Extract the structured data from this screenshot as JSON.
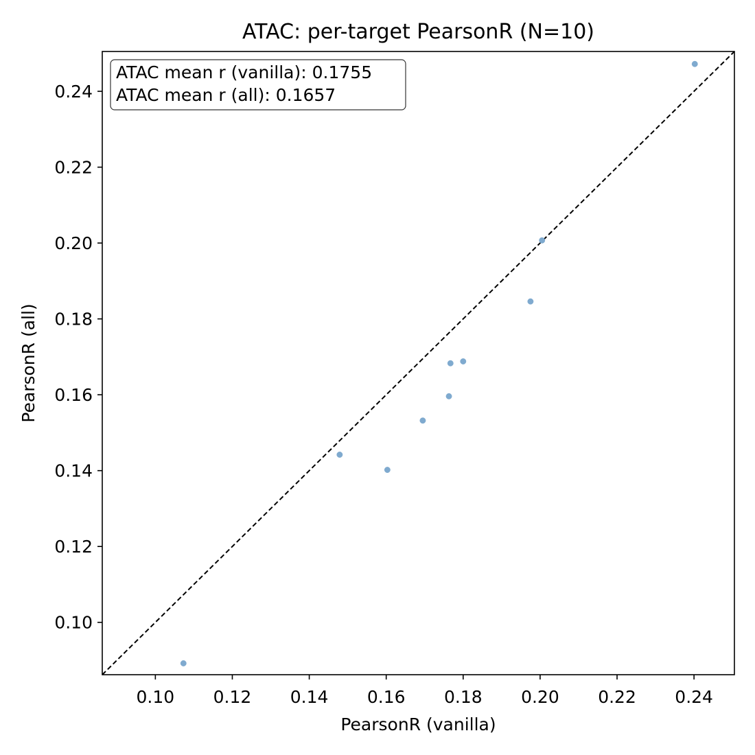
{
  "chart_data": {
    "type": "scatter",
    "title": "ATAC: per-target PearsonR (N=10)",
    "xlabel": "PearsonR (vanilla)",
    "ylabel": "PearsonR (all)",
    "xlim": [
      0.0862,
      0.2505
    ],
    "ylim": [
      0.0862,
      0.2505
    ],
    "xticks": [
      "0.10",
      "0.12",
      "0.14",
      "0.16",
      "0.18",
      "0.20",
      "0.22",
      "0.24"
    ],
    "yticks": [
      "0.10",
      "0.12",
      "0.14",
      "0.16",
      "0.18",
      "0.20",
      "0.22",
      "0.24"
    ],
    "grid": false,
    "reference_line": "y = x (dashed)",
    "annotation_lines": [
      "ATAC mean r (vanilla): 0.1755",
      "ATAC mean r (all): 0.1657"
    ],
    "annotation_placement": "top-left",
    "point_color": "#7faacf",
    "points": [
      {
        "x": 0.1073,
        "y": 0.0892
      },
      {
        "x": 0.1479,
        "y": 0.1442
      },
      {
        "x": 0.1603,
        "y": 0.1402
      },
      {
        "x": 0.1695,
        "y": 0.1532
      },
      {
        "x": 0.1763,
        "y": 0.1596
      },
      {
        "x": 0.1767,
        "y": 0.1683
      },
      {
        "x": 0.18,
        "y": 0.1688
      },
      {
        "x": 0.1975,
        "y": 0.1846
      },
      {
        "x": 0.2005,
        "y": 0.2007
      },
      {
        "x": 0.2402,
        "y": 0.2472
      }
    ]
  }
}
